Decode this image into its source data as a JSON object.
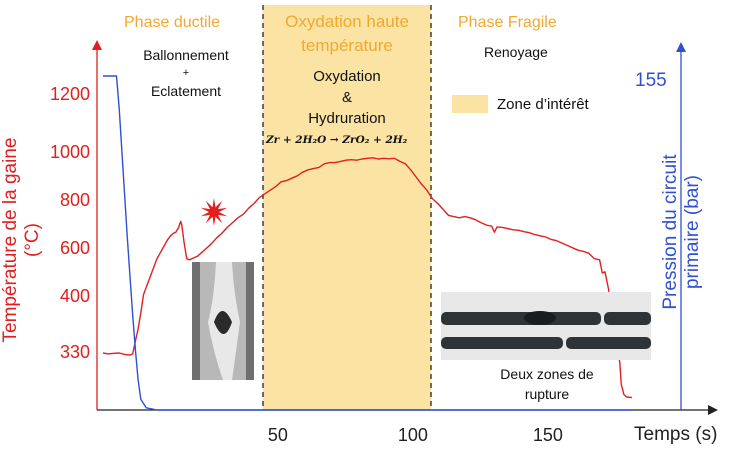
{
  "chart_data": {
    "type": "line",
    "xlabel": "Temps (s)",
    "x_ticks": [
      50,
      100,
      150
    ],
    "ylabel_left": "Température de la gaine (°C)",
    "y_ticks_left": [
      330,
      400,
      600,
      800,
      1000,
      1200
    ],
    "ylabel_right": "Pression du circuit primaire (bar)",
    "y_tick_right": "155",
    "series": [
      {
        "color": "#e02020",
        "axis": "left",
        "points": [
          [
            0,
            330
          ],
          [
            2,
            325
          ],
          [
            4,
            328
          ],
          [
            6,
            330
          ],
          [
            8,
            322
          ],
          [
            10,
            318
          ],
          [
            11,
            325
          ],
          [
            12,
            345
          ],
          [
            13,
            360
          ],
          [
            14,
            380
          ],
          [
            15,
            410
          ],
          [
            16,
            440
          ],
          [
            17,
            470
          ],
          [
            18,
            500
          ],
          [
            19,
            530
          ],
          [
            20,
            560
          ],
          [
            21,
            580
          ],
          [
            22,
            600
          ],
          [
            23,
            620
          ],
          [
            24,
            640
          ],
          [
            25,
            655
          ],
          [
            26,
            665
          ],
          [
            27,
            670
          ],
          [
            28,
            690
          ],
          [
            28.8,
            715
          ],
          [
            29.2,
            700
          ],
          [
            30,
            630
          ],
          [
            31,
            560
          ],
          [
            32,
            555
          ],
          [
            33,
            560
          ],
          [
            34,
            565
          ],
          [
            35,
            570
          ],
          [
            36,
            580
          ],
          [
            38,
            600
          ],
          [
            40,
            620
          ],
          [
            42,
            645
          ],
          [
            44,
            665
          ],
          [
            46,
            690
          ],
          [
            48,
            710
          ],
          [
            50,
            730
          ],
          [
            52,
            745
          ],
          [
            54,
            770
          ],
          [
            56,
            790
          ],
          [
            58,
            815
          ],
          [
            60,
            830
          ],
          [
            62,
            845
          ],
          [
            64,
            860
          ],
          [
            66,
            880
          ],
          [
            68,
            885
          ],
          [
            70,
            895
          ],
          [
            72,
            905
          ],
          [
            74,
            920
          ],
          [
            76,
            930
          ],
          [
            78,
            935
          ],
          [
            80,
            940
          ],
          [
            82,
            955
          ],
          [
            84,
            960
          ],
          [
            86,
            960
          ],
          [
            88,
            965
          ],
          [
            90,
            970
          ],
          [
            92,
            972
          ],
          [
            94,
            970
          ],
          [
            96,
            975
          ],
          [
            98,
            978
          ],
          [
            100,
            980
          ],
          [
            102,
            975
          ],
          [
            104,
            978
          ],
          [
            106,
            976
          ],
          [
            108,
            978
          ],
          [
            110,
            965
          ],
          [
            112,
            955
          ],
          [
            114,
            930
          ],
          [
            116,
            900
          ],
          [
            118,
            870
          ],
          [
            120,
            845
          ],
          [
            122,
            810
          ],
          [
            124,
            790
          ],
          [
            126,
            765
          ],
          [
            128,
            740
          ],
          [
            130,
            735
          ],
          [
            132,
            730
          ],
          [
            134,
            735
          ],
          [
            136,
            730
          ],
          [
            138,
            722
          ],
          [
            140,
            710
          ],
          [
            142,
            700
          ],
          [
            144,
            695
          ],
          [
            145,
            670
          ],
          [
            146,
            692
          ],
          [
            148,
            690
          ],
          [
            150,
            685
          ],
          [
            152,
            680
          ],
          [
            154,
            678
          ],
          [
            156,
            672
          ],
          [
            158,
            668
          ],
          [
            160,
            660
          ],
          [
            162,
            655
          ],
          [
            164,
            650
          ],
          [
            166,
            640
          ],
          [
            168,
            635
          ],
          [
            170,
            625
          ],
          [
            172,
            615
          ],
          [
            174,
            605
          ],
          [
            176,
            595
          ],
          [
            178,
            590
          ],
          [
            180,
            582
          ],
          [
            182,
            560
          ],
          [
            184,
            555
          ],
          [
            185,
            500
          ],
          [
            186,
            505
          ],
          [
            187,
            450
          ],
          [
            187.5,
            420
          ],
          [
            188,
            380
          ],
          [
            189,
            360
          ],
          [
            190,
            345
          ],
          [
            191,
            320
          ],
          [
            191.5,
            270
          ],
          [
            192,
            150
          ],
          [
            193,
            90
          ],
          [
            194,
            75
          ],
          [
            196,
            72
          ]
        ]
      },
      {
        "color": "#3050d0",
        "axis": "right",
        "points": [
          [
            0,
            155
          ],
          [
            5,
            155
          ],
          [
            6,
            140
          ],
          [
            7,
            120
          ],
          [
            8,
            100
          ],
          [
            9,
            80
          ],
          [
            10,
            62
          ],
          [
            11,
            44
          ],
          [
            12,
            28
          ],
          [
            13,
            14
          ],
          [
            14,
            5
          ],
          [
            16,
            1
          ],
          [
            20,
            0
          ],
          [
            100,
            0
          ],
          [
            196,
            0
          ]
        ]
      }
    ],
    "xlim": [
      0,
      205
    ],
    "ylim_left": [
      0,
      1300
    ]
  },
  "legend": {
    "zone_label": "Zone d’intérêt",
    "zone_color": "#fbe3a3"
  },
  "zones": [
    {
      "title": "Phase ductile",
      "subtitle_lines": [
        "Ballonnement",
        "+",
        "Eclatement"
      ]
    },
    {
      "title_lines": [
        "Oxydation haute",
        "température"
      ],
      "subtitle_lines": [
        "Oxydation",
        "&",
        "Hydruration"
      ],
      "equation": "Zr + 2H₂O → ZrO₂ + 2H₂"
    },
    {
      "title": "Phase Fragile",
      "subtitle_lines": [
        "Renoyage"
      ]
    }
  ],
  "annotations": {
    "rupture_caption_lines": [
      "Deux zones de",
      "rupture"
    ]
  },
  "colors": {
    "temperature": "#e02020",
    "pressure": "#3050d0",
    "phase_title": "#f0a830",
    "zone_fill": "#fbe3a3",
    "burst_marker": "#e02020"
  }
}
